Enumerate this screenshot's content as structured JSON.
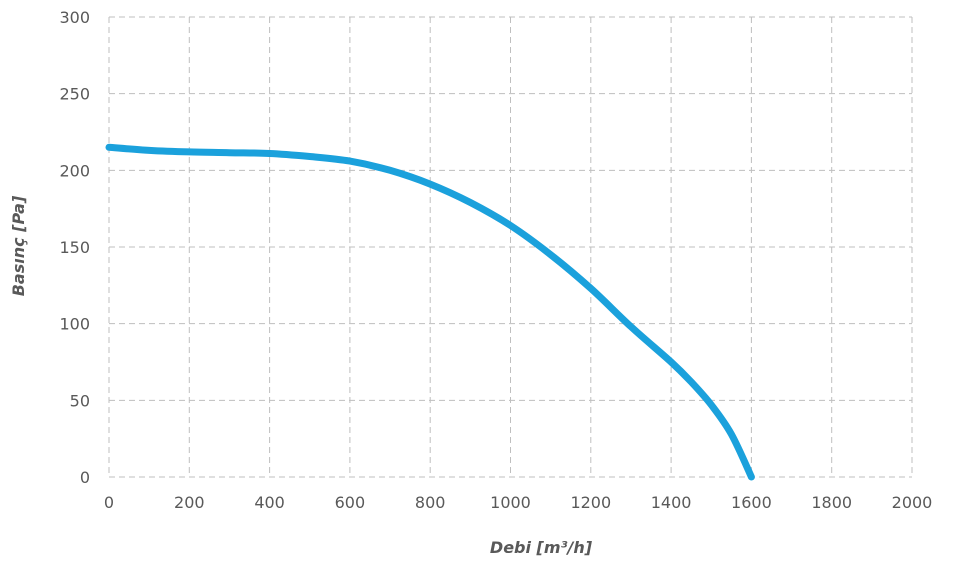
{
  "chart_data": {
    "type": "line",
    "xlabel": "Debi [m³/h]",
    "ylabel": "Basınç [Pa]",
    "xlim": [
      0,
      2000
    ],
    "ylim": [
      0,
      300
    ],
    "x_ticks": [
      "0",
      "200",
      "400",
      "600",
      "800",
      "1000",
      "1200",
      "1400",
      "1600",
      "1800",
      "2000"
    ],
    "y_ticks": [
      "0",
      "50",
      "100",
      "150",
      "200",
      "250",
      "300"
    ],
    "grid": true,
    "legend": "none",
    "series": [
      {
        "color": "#1ba1dc",
        "x": [
          0,
          100,
          200,
          300,
          400,
          500,
          600,
          700,
          800,
          900,
          1000,
          1100,
          1200,
          1300,
          1400,
          1450,
          1500,
          1550,
          1600
        ],
        "y": [
          215,
          213,
          212,
          211.5,
          211,
          209,
          206,
          200,
          191,
          179,
          164,
          145,
          123,
          98,
          75,
          62,
          47,
          28,
          0
        ]
      }
    ]
  }
}
